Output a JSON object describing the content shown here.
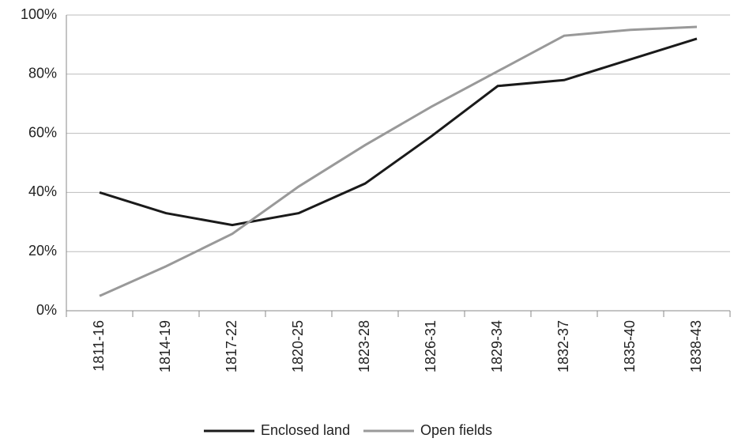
{
  "chart_data": {
    "type": "line",
    "categories": [
      "1811-16",
      "1814-19",
      "1817-22",
      "1820-25",
      "1823-28",
      "1826-31",
      "1829-34",
      "1832-37",
      "1835-40",
      "1838-43"
    ],
    "series": [
      {
        "name": "Enclosed land",
        "color": "#1a1a1a",
        "values": [
          40,
          33,
          29,
          33,
          43,
          59,
          76,
          78,
          85,
          92
        ]
      },
      {
        "name": "Open fields",
        "color": "#999999",
        "values": [
          5,
          15,
          26,
          42,
          56,
          69,
          81,
          93,
          95,
          96
        ]
      }
    ],
    "ylim": [
      0,
      100
    ],
    "yticks": [
      {
        "value": 0,
        "label": "0%"
      },
      {
        "value": 20,
        "label": "20%"
      },
      {
        "value": 40,
        "label": "40%"
      },
      {
        "value": 60,
        "label": "60%"
      },
      {
        "value": 80,
        "label": "80%"
      },
      {
        "value": 100,
        "label": "100%"
      }
    ],
    "grid": true,
    "legend": "bottom"
  }
}
